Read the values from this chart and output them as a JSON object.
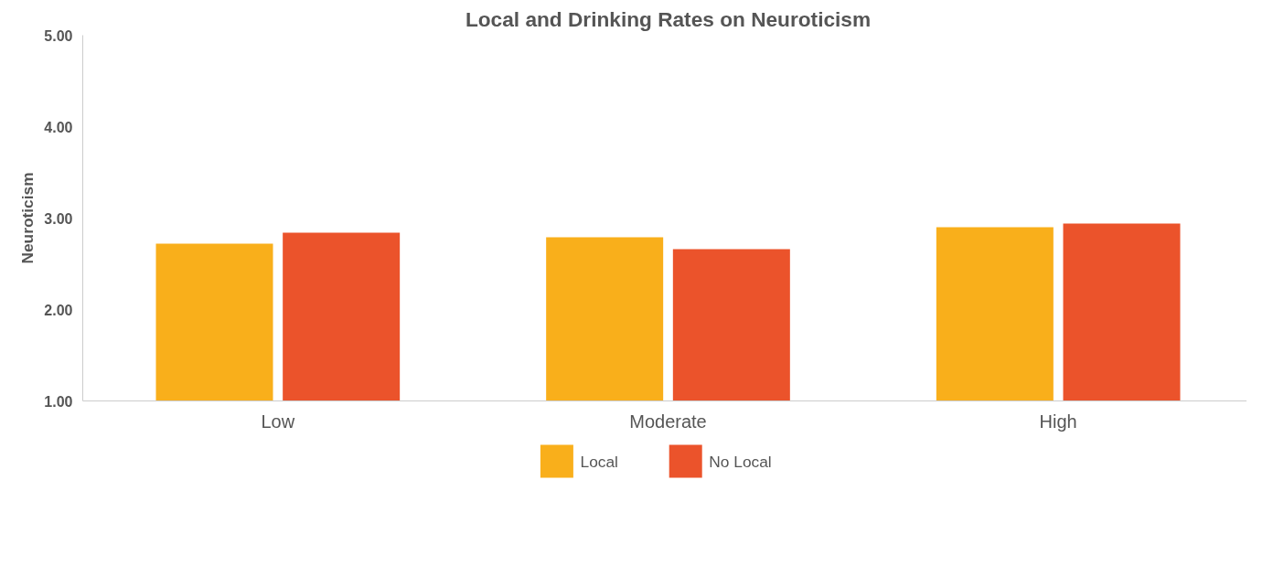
{
  "chart_data": {
    "type": "bar",
    "title": "Local and Drinking Rates on Neuroticism",
    "ylabel": "Neuroticism",
    "categories": [
      "Low",
      "Moderate",
      "High"
    ],
    "series": [
      {
        "name": "Local",
        "color": "#f9af1b",
        "values": [
          2.72,
          2.79,
          2.9
        ]
      },
      {
        "name": "No Local",
        "color": "#eb532b",
        "values": [
          2.84,
          2.66,
          2.94
        ]
      }
    ],
    "ylim": [
      1,
      5
    ],
    "yticks": [
      {
        "value": 1,
        "label": "1.00"
      },
      {
        "value": 2,
        "label": "2.00"
      },
      {
        "value": 3,
        "label": "3.00"
      },
      {
        "value": 4,
        "label": "4.00"
      },
      {
        "value": 5,
        "label": "5.00"
      }
    ],
    "grid": false,
    "legend": "bottom"
  }
}
